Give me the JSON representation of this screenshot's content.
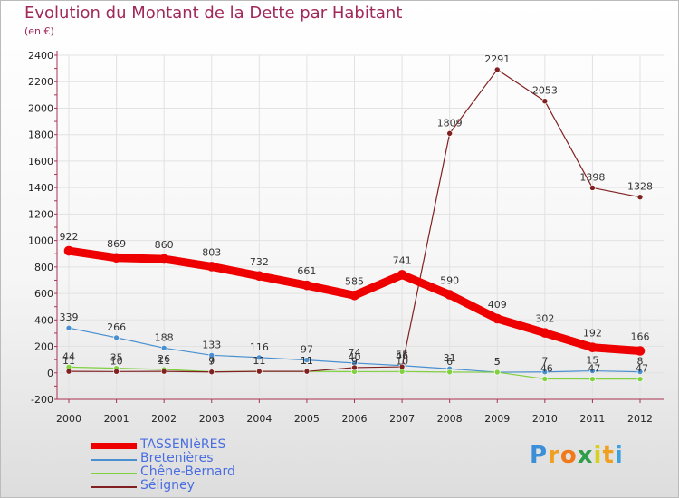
{
  "title": "Evolution du Montant de la Dette par Habitant",
  "unit": "(en €)",
  "logo": {
    "letters": [
      "P",
      "r",
      "o",
      "x",
      "i",
      "t",
      "i"
    ],
    "colors": [
      "#3a8fd8",
      "#f0a020",
      "#f07a1a",
      "#2e9e4a",
      "#d8d020",
      "#f0a020",
      "#3aa0e0"
    ]
  },
  "chart_data": {
    "type": "line",
    "title": "Evolution du Montant de la Dette par Habitant",
    "ylabel": "(en €)",
    "categories": [
      "2000",
      "2001",
      "2002",
      "2003",
      "2004",
      "2005",
      "2006",
      "2007",
      "2008",
      "2009",
      "2010",
      "2011",
      "2012"
    ],
    "ylim": [
      -200,
      2400
    ],
    "yticks": [
      -200,
      0,
      200,
      400,
      600,
      800,
      1000,
      1200,
      1400,
      1600,
      1800,
      2000,
      2200,
      2400
    ],
    "series": [
      {
        "name": "TASSENIèRES",
        "color": "#ee0000",
        "bold": true,
        "values": [
          922,
          869,
          860,
          803,
          732,
          661,
          585,
          741,
          590,
          409,
          302,
          192,
          166
        ],
        "labels": [
          "922",
          "869",
          "860",
          "803",
          "732",
          "661",
          "585",
          "741",
          "590",
          "409",
          "302",
          "192",
          "166"
        ]
      },
      {
        "name": "Bretenières",
        "color": "#4a90d0",
        "values": [
          339,
          266,
          188,
          133,
          116,
          97,
          74,
          55,
          31,
          5,
          7,
          15,
          8
        ],
        "labels": [
          "339",
          "266",
          "188",
          "133",
          "116",
          "97",
          "74",
          "55",
          "31",
          "5",
          "7",
          "15",
          "8"
        ]
      },
      {
        "name": "Chêne-Bernard",
        "color": "#80d040",
        "values": [
          44,
          35,
          26,
          9,
          11,
          11,
          9,
          10,
          6,
          5,
          -46,
          -47,
          -47
        ],
        "labels": [
          "44",
          "35",
          "26",
          "9",
          "11",
          "11",
          "9",
          "10",
          "6",
          "5",
          "-46",
          "-47",
          "-47"
        ]
      },
      {
        "name": "Séligney",
        "color": "#802020",
        "values": [
          11,
          10,
          11,
          7,
          11,
          11,
          40,
          46,
          1809,
          2291,
          2053,
          1398,
          1328
        ],
        "labels": [
          "11",
          "10",
          "11",
          "7",
          "11",
          "11",
          "40",
          "46",
          "1809",
          "2291",
          "2053",
          "1398",
          "1328"
        ]
      }
    ]
  }
}
